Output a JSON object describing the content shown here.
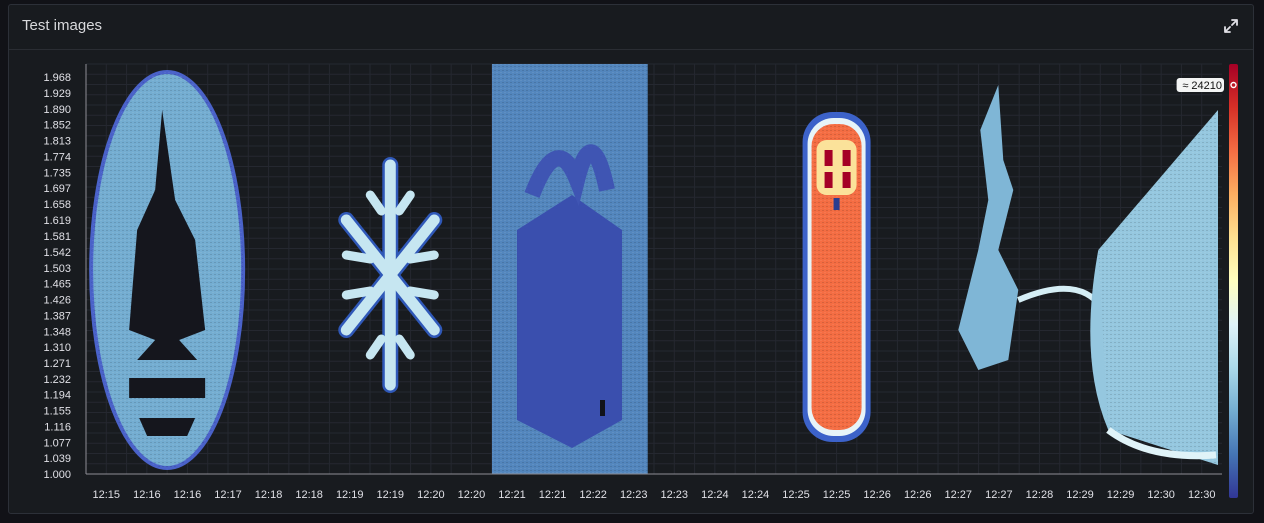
{
  "panel": {
    "title": "Test images"
  },
  "icons": {
    "expand": "expand-icon"
  },
  "colors": {
    "background": "#111217",
    "panel_bg": "#181b1f",
    "grid": "#252830",
    "scale": [
      "#313695",
      "#4575b4",
      "#74add1",
      "#abd9e9",
      "#e0f3f8",
      "#ffffbf",
      "#fee090",
      "#fdae61",
      "#f46d43",
      "#d73027",
      "#a50026"
    ]
  },
  "chart_data": {
    "type": "heatmap",
    "title": "",
    "xlabel": "",
    "ylabel": "",
    "x_ticks": [
      "12:15",
      "12:16",
      "12:16",
      "12:17",
      "12:18",
      "12:18",
      "12:19",
      "12:19",
      "12:20",
      "12:20",
      "12:21",
      "12:21",
      "12:22",
      "12:23",
      "12:23",
      "12:24",
      "12:24",
      "12:25",
      "12:25",
      "12:26",
      "12:26",
      "12:27",
      "12:27",
      "12:28",
      "12:29",
      "12:29",
      "12:30",
      "12:30"
    ],
    "y_ticks": [
      "1.968",
      "1.929",
      "1.890",
      "1.852",
      "1.813",
      "1.774",
      "1.735",
      "1.697",
      "1.658",
      "1.619",
      "1.581",
      "1.542",
      "1.503",
      "1.465",
      "1.426",
      "1.387",
      "1.348",
      "1.310",
      "1.271",
      "1.232",
      "1.194",
      "1.155",
      "1.116",
      "1.077",
      "1.039",
      "1.000"
    ],
    "ylim": [
      1.0,
      2.0
    ],
    "color_scale": {
      "max_label": "≈ 24210"
    },
    "images": [
      {
        "name": "flame-emblem",
        "x_range": [
          "12:15",
          "12:17"
        ],
        "value_level": 0.2
      },
      {
        "name": "snowflake",
        "x_range": [
          "12:19",
          "12:20"
        ],
        "value_level": 0.35
      },
      {
        "name": "gift-box",
        "x_range": [
          "12:21",
          "12:23"
        ],
        "value_level": 0.08
      },
      {
        "name": "character",
        "x_range": [
          "12:25",
          "12:26"
        ],
        "value_level": 0.8
      },
      {
        "name": "reindeer-sleigh",
        "x_range": [
          "12:27",
          "12:30"
        ],
        "value_level": 0.28
      }
    ]
  }
}
